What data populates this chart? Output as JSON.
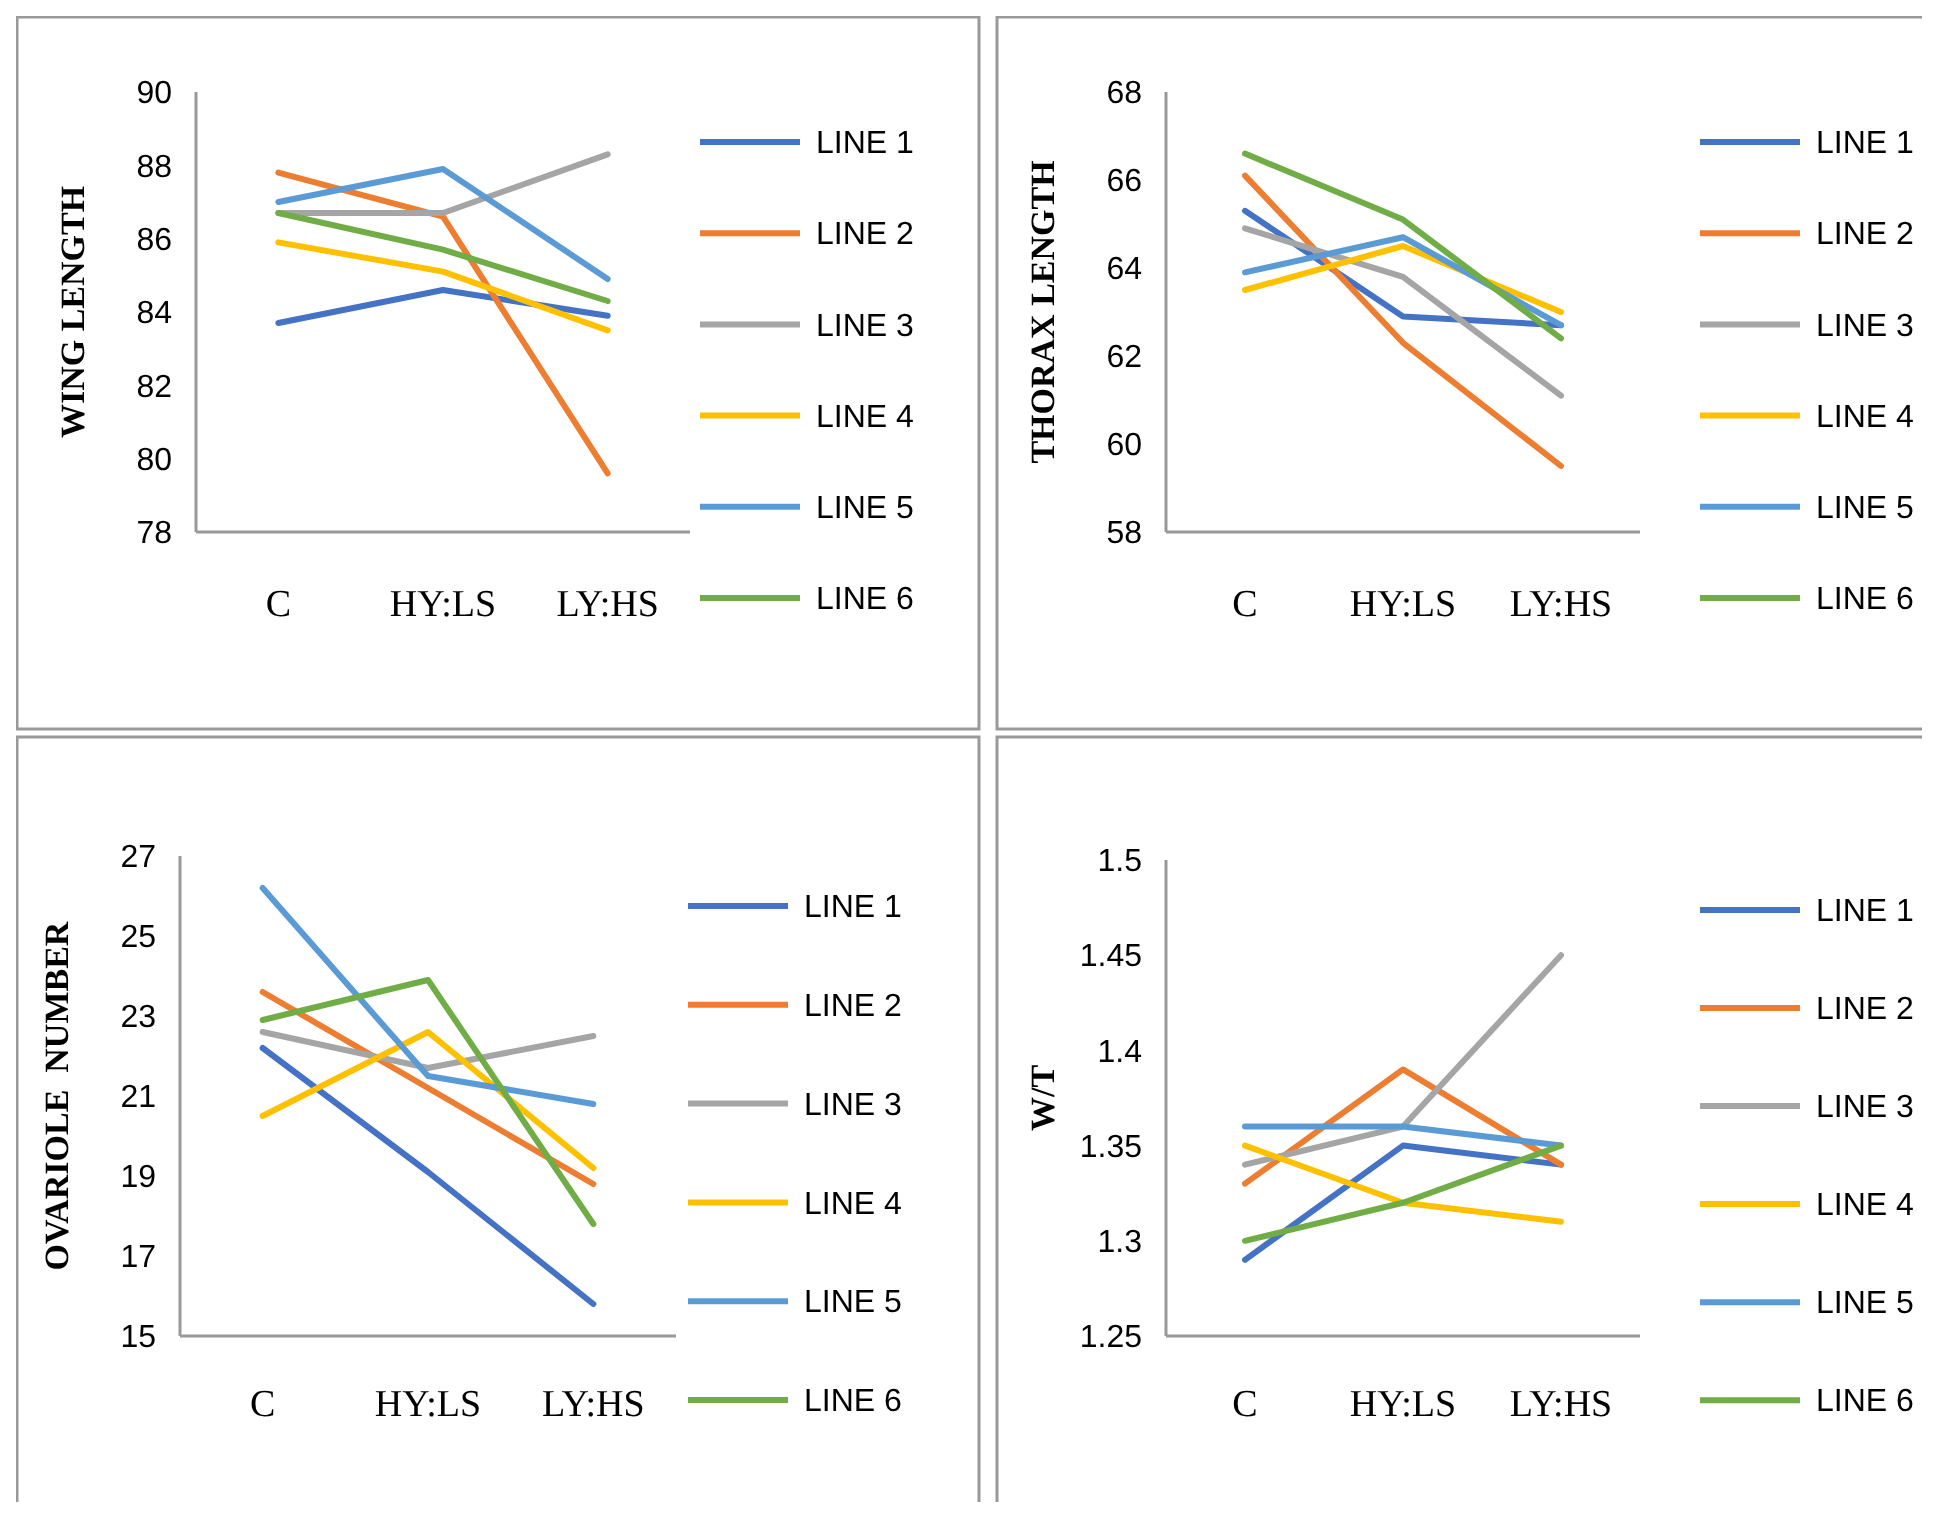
{
  "chart_data": [
    {
      "type": "line",
      "ylabel": "WING LENGTH",
      "categories": [
        "C",
        "HY:LS",
        "LY:HS"
      ],
      "ylim": [
        78,
        90
      ],
      "yticks": [
        78,
        80,
        82,
        84,
        86,
        88,
        90
      ],
      "legend": "right",
      "series": [
        {
          "name": "LINE 1",
          "color": "#4472c4",
          "values": [
            83.7,
            84.6,
            83.9
          ]
        },
        {
          "name": "LINE 2",
          "color": "#ed7d31",
          "values": [
            87.8,
            86.6,
            79.6
          ]
        },
        {
          "name": "LINE 3",
          "color": "#a5a5a5",
          "values": [
            86.7,
            86.7,
            88.3
          ]
        },
        {
          "name": "LINE 4",
          "color": "#ffc000",
          "values": [
            85.9,
            85.1,
            83.5
          ]
        },
        {
          "name": "LINE 5",
          "color": "#5b9bd5",
          "values": [
            87.0,
            87.9,
            84.9
          ]
        },
        {
          "name": "LINE 6",
          "color": "#70ad47",
          "values": [
            86.7,
            85.7,
            84.3
          ]
        }
      ]
    },
    {
      "type": "line",
      "ylabel": "THORAX LENGTH",
      "categories": [
        "C",
        "HY:LS",
        "LY:HS"
      ],
      "ylim": [
        58,
        68
      ],
      "yticks": [
        58,
        60,
        62,
        64,
        66,
        68
      ],
      "legend": "right",
      "series": [
        {
          "name": "LINE 1",
          "color": "#4472c4",
          "values": [
            65.3,
            62.9,
            62.7
          ]
        },
        {
          "name": "LINE 2",
          "color": "#ed7d31",
          "values": [
            66.1,
            62.3,
            59.5
          ]
        },
        {
          "name": "LINE 3",
          "color": "#a5a5a5",
          "values": [
            64.9,
            63.8,
            61.1
          ]
        },
        {
          "name": "LINE 4",
          "color": "#ffc000",
          "values": [
            63.5,
            64.5,
            63.0
          ]
        },
        {
          "name": "LINE 5",
          "color": "#5b9bd5",
          "values": [
            63.9,
            64.7,
            62.7
          ]
        },
        {
          "name": "LINE 6",
          "color": "#70ad47",
          "values": [
            66.6,
            65.1,
            62.4
          ]
        }
      ]
    },
    {
      "type": "line",
      "ylabel": "OVARIOLE  NUMBER",
      "categories": [
        "C",
        "HY:LS",
        "LY:HS"
      ],
      "ylim": [
        15,
        27
      ],
      "yticks": [
        15,
        17,
        19,
        21,
        23,
        25,
        27
      ],
      "legend": "right",
      "series": [
        {
          "name": "LINE 1",
          "color": "#4472c4",
          "values": [
            22.2,
            19.1,
            15.8
          ]
        },
        {
          "name": "LINE 2",
          "color": "#ed7d31",
          "values": [
            23.6,
            21.2,
            18.8
          ]
        },
        {
          "name": "LINE 3",
          "color": "#a5a5a5",
          "values": [
            22.6,
            21.7,
            22.5
          ]
        },
        {
          "name": "LINE 4",
          "color": "#ffc000",
          "values": [
            20.5,
            22.6,
            19.2
          ]
        },
        {
          "name": "LINE 5",
          "color": "#5b9bd5",
          "values": [
            26.2,
            21.5,
            20.8
          ]
        },
        {
          "name": "LINE 6",
          "color": "#70ad47",
          "values": [
            22.9,
            23.9,
            17.8
          ]
        }
      ]
    },
    {
      "type": "line",
      "ylabel": "W/T",
      "categories": [
        "C",
        "HY:LS",
        "LY:HS"
      ],
      "ylim": [
        1.25,
        1.5
      ],
      "yticks": [
        1.25,
        1.3,
        1.35,
        1.4,
        1.45,
        1.5
      ],
      "legend": "right",
      "series": [
        {
          "name": "LINE 1",
          "color": "#4472c4",
          "values": [
            1.29,
            1.35,
            1.34
          ]
        },
        {
          "name": "LINE 2",
          "color": "#ed7d31",
          "values": [
            1.33,
            1.39,
            1.34
          ]
        },
        {
          "name": "LINE 3",
          "color": "#a5a5a5",
          "values": [
            1.34,
            1.36,
            1.45
          ]
        },
        {
          "name": "LINE 4",
          "color": "#ffc000",
          "values": [
            1.35,
            1.32,
            1.31
          ]
        },
        {
          "name": "LINE 5",
          "color": "#5b9bd5",
          "values": [
            1.36,
            1.36,
            1.35
          ]
        },
        {
          "name": "LINE 6",
          "color": "#70ad47",
          "values": [
            1.3,
            1.32,
            1.35
          ]
        }
      ]
    }
  ]
}
